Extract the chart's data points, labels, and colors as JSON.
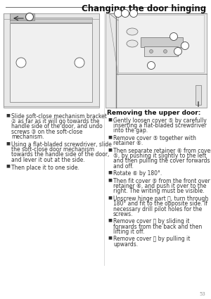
{
  "title": "Changing the door hinging",
  "title_fontsize": 8.5,
  "bg_color": "#ffffff",
  "page_number": "53",
  "top_rule_color": "#555555",
  "subtitle": "Removing the upper door:",
  "subtitle_fontsize": 6.5,
  "left_bullets": [
    "Slide soft-close mechanism bracket\n② as far as it will go towards the\nhandle side of the door, and undo\nscrews ③ on the soft-close\nmechanism.",
    "Using a flat-bladed screwdriver, slide\nthe soft-close door mechanism\ntowards the handle side of the door,\nand lever it out at the side.",
    "Then place it to one side."
  ],
  "right_bullets": [
    "Gently loosen cover ⑤ by carefully\ninserting a flat-bladed screwdriver\ninto the gap.",
    "Remove cover ⑤ together with\nretainer ⑥.",
    "Then separate retainer ⑥ from cover\n⑤, by pushing it slightly to the left\nand then pulling the cover forwards\nand off.",
    "Rotate ⑥ by 180°.",
    "Then fit cover ⑤ from the front over\nretainer ⑥, and push it over to the\nright. The writing must be visible.",
    "Unscrew hinge part ⓡ, turn through\n180° and fit to the opposite side. If\nnecessary drill pilot holes for the\nscrews.",
    "Remove cover ⓝ by sliding it\nforwards from the back and then\nlifting it off.",
    "Remove cover ⓞ by pulling it\nupwards."
  ],
  "text_color": "#333333",
  "text_fontsize": 5.5,
  "diagram_bg": "#e8e8e8",
  "diagram_border": "#aaaaaa"
}
